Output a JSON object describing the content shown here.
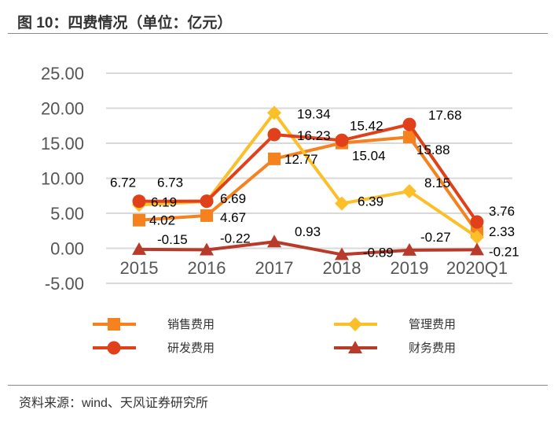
{
  "title": "图 10：四费情况（单位：亿元）",
  "source": "资料来源：wind、天风证券研究所",
  "chart_data": {
    "type": "line",
    "categories": [
      "2015",
      "2016",
      "2017",
      "2018",
      "2019",
      "2020Q1"
    ],
    "ylim": [
      -5,
      25
    ],
    "yticks": [
      "-5.00",
      "0.00",
      "5.00",
      "10.00",
      "15.00",
      "20.00",
      "25.00"
    ],
    "grid": true,
    "legend_position": "bottom",
    "series": [
      {
        "name": "销售费用",
        "marker": "square",
        "color": "#f5821f",
        "values": [
          4.02,
          4.67,
          12.77,
          15.04,
          15.88,
          2.33
        ],
        "labels": [
          "4.02",
          "4.67",
          "12.77",
          "15.04",
          "15.88",
          "2.33"
        ]
      },
      {
        "name": "管理费用",
        "marker": "diamond",
        "color": "#fbbf2a",
        "values": [
          6.19,
          6.69,
          19.34,
          6.39,
          8.15,
          1.6
        ],
        "labels": [
          "6.19",
          "6.69",
          "19.34",
          "6.39",
          "8.15",
          ""
        ]
      },
      {
        "name": "研发费用",
        "marker": "circle",
        "color": "#e0401a",
        "values": [
          6.72,
          6.73,
          16.23,
          15.42,
          17.68,
          3.76
        ],
        "labels": [
          "6.72",
          "6.73",
          "16.23",
          "15.42",
          "17.68",
          "3.76"
        ]
      },
      {
        "name": "财务费用",
        "marker": "triangle",
        "color": "#b83a2a",
        "values": [
          -0.15,
          -0.22,
          0.93,
          -0.89,
          -0.27,
          -0.21
        ],
        "labels": [
          "-0.15",
          "-0.22",
          "0.93",
          "-0.89",
          "-0.27",
          "-0.21"
        ]
      }
    ]
  }
}
